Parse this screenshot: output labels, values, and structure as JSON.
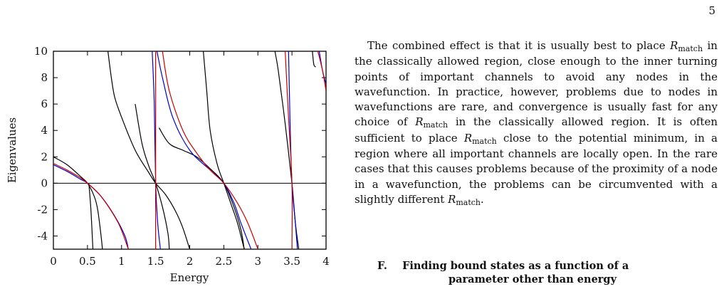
{
  "page_number": "5",
  "chart_data": {
    "type": "line",
    "title": "",
    "xlabel": "Energy",
    "ylabel": "Eigenvalues",
    "xlim": [
      0,
      4
    ],
    "ylim": [
      -5,
      10
    ],
    "x_ticks": [
      "0",
      "0.5",
      "1",
      "1.5",
      "2",
      "2.5",
      "3",
      "3.5",
      "4"
    ],
    "y_ticks": [
      "10",
      "8",
      "6",
      "4",
      "2",
      "0",
      "-2",
      "-4"
    ],
    "zero_line": true,
    "series": [
      {
        "color": "#000000",
        "points": [
          [
            0,
            2.0
          ],
          [
            0.2,
            1.4
          ],
          [
            0.4,
            0.5
          ],
          [
            0.5,
            0.0
          ],
          [
            0.6,
            -1.0
          ],
          [
            0.65,
            -2.0
          ],
          [
            0.7,
            -4.0
          ],
          [
            0.72,
            -5.0
          ]
        ]
      },
      {
        "color": "#000000",
        "points": [
          [
            0.8,
            10
          ],
          [
            0.85,
            8
          ],
          [
            0.9,
            6.5
          ],
          [
            1.0,
            5.0
          ],
          [
            1.2,
            2.5
          ],
          [
            1.4,
            0.8
          ],
          [
            1.5,
            0.0
          ],
          [
            1.65,
            -0.9
          ],
          [
            1.8,
            -2.2
          ],
          [
            1.9,
            -3.4
          ],
          [
            2.0,
            -5.0
          ]
        ]
      },
      {
        "color": "#000000",
        "points": [
          [
            1.2,
            6.0
          ],
          [
            1.3,
            3.0
          ],
          [
            1.4,
            1.3
          ],
          [
            1.5,
            0.0
          ],
          [
            1.6,
            -1.8
          ],
          [
            1.68,
            -3.8
          ],
          [
            1.7,
            -5.0
          ]
        ]
      },
      {
        "color": "#000000",
        "points": [
          [
            0.52,
            0.0
          ],
          [
            0.55,
            -2.0
          ],
          [
            0.58,
            -5.0
          ]
        ]
      },
      {
        "color": "#000000",
        "points": [
          [
            2.2,
            10
          ],
          [
            2.25,
            7.0
          ],
          [
            2.3,
            4.0
          ],
          [
            2.4,
            1.5
          ],
          [
            2.5,
            0.0
          ],
          [
            2.6,
            -1.5
          ],
          [
            2.7,
            -3.0
          ],
          [
            2.8,
            -5.0
          ]
        ]
      },
      {
        "color": "#000000",
        "points": [
          [
            1.55,
            4.2
          ],
          [
            1.7,
            3.0
          ],
          [
            1.9,
            2.5
          ],
          [
            2.1,
            2.0
          ],
          [
            2.3,
            1.1
          ],
          [
            2.5,
            0.0
          ],
          [
            2.65,
            -1.8
          ],
          [
            2.75,
            -3.5
          ],
          [
            2.8,
            -5.0
          ]
        ]
      },
      {
        "color": "#000000",
        "points": [
          [
            3.25,
            10
          ],
          [
            3.3,
            8.5
          ],
          [
            3.4,
            4.5
          ],
          [
            3.5,
            0.0
          ],
          [
            3.55,
            -3.0
          ],
          [
            3.6,
            -5.0
          ]
        ]
      },
      {
        "color": "#000000",
        "points": [
          [
            3.8,
            10
          ],
          [
            3.82,
            9.0
          ],
          [
            3.85,
            8.8
          ]
        ]
      },
      {
        "color": "#0000cc",
        "points": [
          [
            0,
            1.4
          ],
          [
            0.2,
            0.9
          ],
          [
            0.4,
            0.3
          ],
          [
            0.5,
            0.0
          ],
          [
            0.7,
            -1.0
          ],
          [
            0.9,
            -2.5
          ],
          [
            1.05,
            -4.0
          ],
          [
            1.1,
            -5.0
          ]
        ]
      },
      {
        "color": "#0000cc",
        "points": [
          [
            1.45,
            10
          ],
          [
            1.48,
            6.0
          ],
          [
            1.5,
            0.0
          ],
          [
            1.53,
            -3.0
          ],
          [
            1.57,
            -5.0
          ]
        ]
      },
      {
        "color": "#0000cc",
        "points": [
          [
            1.52,
            10
          ],
          [
            1.6,
            8.0
          ],
          [
            1.75,
            5.0
          ],
          [
            2.0,
            2.5
          ],
          [
            2.3,
            1.0
          ],
          [
            2.5,
            0.0
          ],
          [
            2.65,
            -1.5
          ],
          [
            2.75,
            -3.0
          ],
          [
            2.9,
            -5.0
          ]
        ]
      },
      {
        "color": "#0000cc",
        "points": [
          [
            3.45,
            10
          ],
          [
            3.47,
            5.0
          ],
          [
            3.5,
            0.0
          ],
          [
            3.55,
            -3.0
          ],
          [
            3.58,
            -5.0
          ]
        ]
      },
      {
        "color": "#0000cc",
        "points": [
          [
            3.9,
            10
          ],
          [
            3.95,
            8.5
          ],
          [
            4.0,
            7.5
          ]
        ]
      },
      {
        "color": "#cc0000",
        "points": [
          [
            0,
            1.5
          ],
          [
            0.2,
            1.0
          ],
          [
            0.4,
            0.4
          ],
          [
            0.5,
            0.0
          ],
          [
            0.7,
            -1.0
          ],
          [
            0.95,
            -3.0
          ],
          [
            1.1,
            -5.0
          ]
        ]
      },
      {
        "color": "#cc0000",
        "points": [
          [
            1.5,
            10
          ],
          [
            1.5,
            -5.0
          ]
        ]
      },
      {
        "color": "#cc0000",
        "points": [
          [
            1.6,
            10
          ],
          [
            1.7,
            7.0
          ],
          [
            1.9,
            4.0
          ],
          [
            2.1,
            2.3
          ],
          [
            2.3,
            1.0
          ],
          [
            2.5,
            0.0
          ],
          [
            2.7,
            -1.5
          ],
          [
            2.85,
            -3.0
          ],
          [
            3.0,
            -5.0
          ]
        ]
      },
      {
        "color": "#cc0000",
        "points": [
          [
            3.4,
            10
          ],
          [
            3.45,
            5.0
          ],
          [
            3.5,
            0.0
          ],
          [
            3.5,
            -5.0
          ]
        ]
      },
      {
        "color": "#cc0000",
        "points": [
          [
            3.88,
            10
          ],
          [
            3.95,
            8.5
          ],
          [
            4.0,
            7.0
          ]
        ]
      }
    ]
  },
  "body": {
    "p1": {
      "s1": "The combined effect is that it is usually best to place",
      "r": "R",
      "match": "match",
      "s2": " in the classically allowed region, close enough to the inner turning points of important channels to avoid any nodes in the wavefunction. In practice, however, problems due to nodes in wavefunctions are rare, and convergence is usually fast for any choice of ",
      "s3": " in the classically allowed region. It is often sufficient to place ",
      "s4": " close to the potential minimum, in a region where all important channels are locally open. In the rare cases that this causes problems because of the proximity of a node in a wavefunction, the problems can be circumvented with a slightly different ",
      "s5": "."
    }
  },
  "section": {
    "number": "F.",
    "line1": "Finding bound states as a function of a",
    "line2": "parameter other than energy"
  }
}
